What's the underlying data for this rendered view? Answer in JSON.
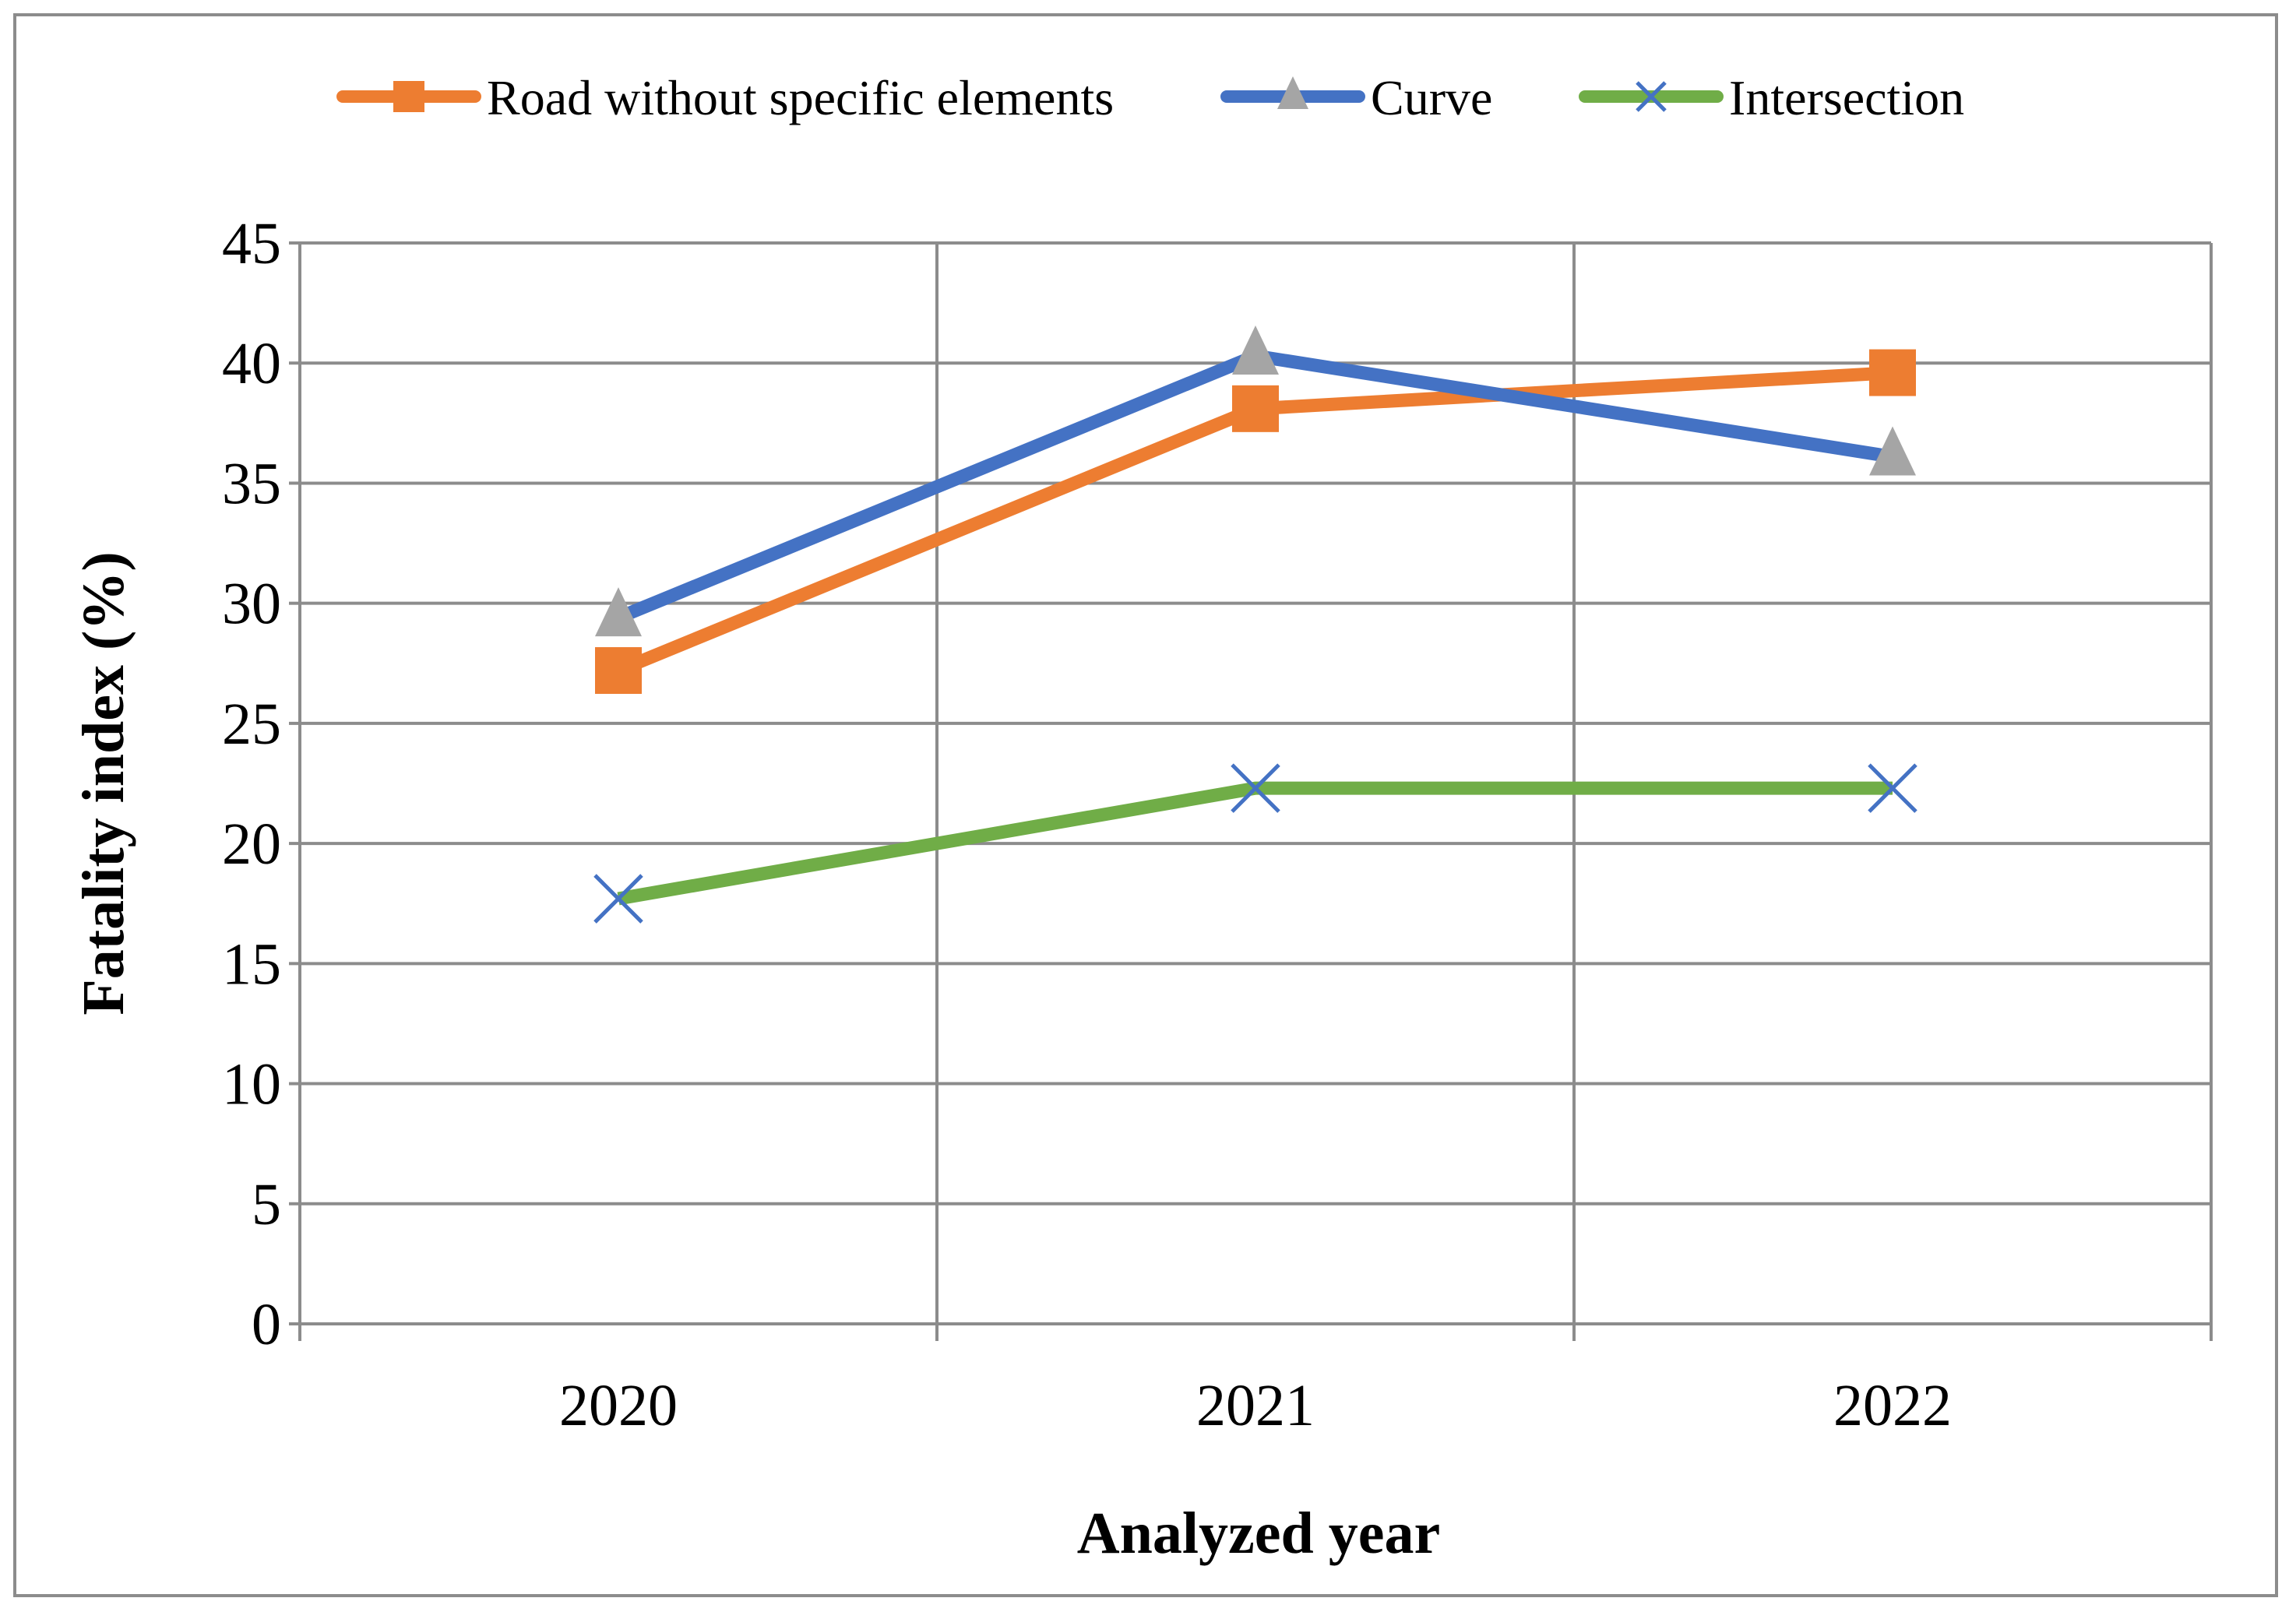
{
  "chart_data": {
    "type": "line",
    "title": "",
    "xlabel": "Analyzed year",
    "ylabel": "Fatality index (%)",
    "categories": [
      "2020",
      "2021",
      "2022"
    ],
    "ylim": [
      0,
      45
    ],
    "yticks": [
      0,
      5,
      10,
      15,
      20,
      25,
      30,
      35,
      40,
      45
    ],
    "grid": true,
    "legend_position": "top",
    "series": [
      {
        "name": "Road without specific elements",
        "values": [
          27.2,
          38.1,
          39.6
        ],
        "color": "#ED7D31",
        "marker": "square",
        "marker_color": "#ED7D31"
      },
      {
        "name": "Curve",
        "values": [
          29.4,
          40.3,
          36.1
        ],
        "color": "#4472C4",
        "marker": "triangle",
        "marker_color": "#A5A5A5"
      },
      {
        "name": "Intersection",
        "values": [
          17.7,
          22.3,
          22.3
        ],
        "color": "#70AD47",
        "marker": "x",
        "marker_color": "#4472C4"
      }
    ]
  }
}
